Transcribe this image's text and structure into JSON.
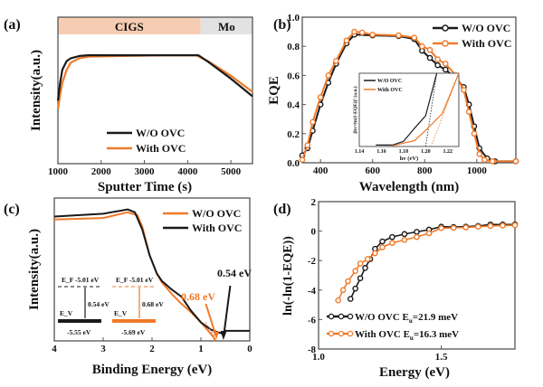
{
  "colors": {
    "black": "#1a1a1a",
    "orange": "#f07a2a",
    "cigs_band": "#f6cdb3",
    "mo_band": "#e2e2e2",
    "axis": "#555555"
  },
  "chart_data": [
    {
      "panel": "(a)",
      "type": "line",
      "xlabel": "Sputter Time (s)",
      "ylabel": "Intensity(a.u.)",
      "xlim": [
        1000,
        5500
      ],
      "ylim": [
        0,
        1
      ],
      "xticks": [
        1000,
        2000,
        3000,
        4000,
        5000
      ],
      "regions": [
        {
          "label": "CIGS",
          "from": 1000,
          "to": 4300
        },
        {
          "label": "Mo",
          "from": 4300,
          "to": 5500
        }
      ],
      "legend": "bottom-center",
      "series": [
        {
          "name": "W/O OVC",
          "color": "black",
          "x": [
            1000,
            1050,
            1100,
            1200,
            1300,
            1500,
            1700,
            2500,
            3500,
            4250,
            4500,
            5000,
            5500
          ],
          "y": [
            0.43,
            0.55,
            0.64,
            0.7,
            0.72,
            0.735,
            0.74,
            0.74,
            0.74,
            0.74,
            0.69,
            0.58,
            0.46
          ]
        },
        {
          "name": "With OVC",
          "color": "orange",
          "x": [
            1000,
            1050,
            1100,
            1200,
            1300,
            1500,
            1700,
            2500,
            3500,
            4200,
            4500,
            5000,
            5500
          ],
          "y": [
            0.37,
            0.47,
            0.55,
            0.64,
            0.69,
            0.72,
            0.73,
            0.735,
            0.74,
            0.74,
            0.695,
            0.6,
            0.49
          ]
        }
      ]
    },
    {
      "panel": "(b)",
      "type": "line",
      "xlabel": "Wavelength (nm)",
      "ylabel": "EQE",
      "xlim": [
        330,
        1150
      ],
      "ylim": [
        0,
        1.0
      ],
      "xticks": [
        400,
        600,
        800,
        1000
      ],
      "yticks": [
        "0.0",
        "0.2",
        "0.4",
        "0.6",
        "0.8",
        "1.0"
      ],
      "legend": "top-right",
      "series": [
        {
          "name": "W/O OVC",
          "color": "black",
          "x": [
            330,
            350,
            370,
            400,
            430,
            460,
            500,
            530,
            600,
            700,
            760,
            790,
            820,
            850,
            880,
            920,
            950,
            970,
            990,
            1010,
            1040,
            1070,
            1150
          ],
          "y": [
            0.05,
            0.1,
            0.22,
            0.4,
            0.55,
            0.68,
            0.82,
            0.88,
            0.875,
            0.87,
            0.85,
            0.77,
            0.72,
            0.67,
            0.64,
            0.58,
            0.52,
            0.4,
            0.25,
            0.1,
            0.03,
            0.01,
            0.01
          ]
        },
        {
          "name": "With OVC",
          "color": "orange",
          "x": [
            330,
            350,
            370,
            400,
            430,
            460,
            500,
            530,
            560,
            600,
            700,
            760,
            790,
            820,
            850,
            880,
            920,
            950,
            970,
            990,
            1010,
            1030,
            1060,
            1150
          ],
          "y": [
            0.02,
            0.12,
            0.28,
            0.45,
            0.6,
            0.7,
            0.84,
            0.9,
            0.895,
            0.88,
            0.875,
            0.86,
            0.8,
            0.775,
            0.71,
            0.68,
            0.6,
            0.5,
            0.35,
            0.2,
            0.06,
            0.02,
            0.01,
            0.01
          ]
        }
      ],
      "inset": {
        "xlabel": "hv (eV)",
        "ylabel": "[hv×ln(1-EQE)]² (a.u.)",
        "xlim": [
          1.14,
          1.23
        ],
        "xticks": [
          "1.14",
          "1.16",
          "1.18",
          "1.20",
          "1.22"
        ],
        "series": [
          {
            "name": "W/O OVC",
            "color": "black",
            "x": [
              1.155,
              1.17,
              1.18,
              1.19,
              1.2,
              1.21
            ],
            "y": [
              0.02,
              0.02,
              0.07,
              0.25,
              0.42,
              1.0
            ],
            "intercept": 1.2
          },
          {
            "name": "With OVC",
            "color": "orange",
            "x": [
              1.17,
              1.19,
              1.2,
              1.215,
              1.23
            ],
            "y": [
              0.01,
              0.08,
              0.22,
              0.45,
              1.0
            ],
            "intercept": 1.205
          }
        ]
      }
    },
    {
      "panel": "(c)",
      "type": "line",
      "xlabel": "Binding Energy (eV)",
      "ylabel": "Intensity(a.u.)",
      "xlim": [
        4,
        0
      ],
      "ylim": [
        0,
        1
      ],
      "xticks": [
        4,
        3,
        2,
        1,
        0
      ],
      "legend": "top-right",
      "series": [
        {
          "name": "W/O OVC",
          "color": "orange",
          "x": [
            4,
            3,
            2.5,
            2.3,
            2.2,
            2.05,
            1.9,
            1.8,
            1.6,
            1.4,
            1.2,
            1.0,
            0.85,
            0.75,
            0.7
          ],
          "y": [
            0.85,
            0.86,
            0.9,
            0.88,
            0.8,
            0.6,
            0.47,
            0.41,
            0.33,
            0.26,
            0.2,
            0.13,
            0.07,
            0.03,
            0.0
          ]
        },
        {
          "name": "With OVC",
          "color": "black",
          "x": [
            4,
            3,
            2.5,
            2.35,
            2.2,
            2.05,
            1.9,
            1.8,
            1.6,
            1.4,
            1.3,
            1.2,
            1.0,
            0.8,
            0.65,
            0.55,
            0.5,
            0.3,
            0
          ],
          "y": [
            0.87,
            0.89,
            0.92,
            0.9,
            0.78,
            0.6,
            0.47,
            0.42,
            0.36,
            0.31,
            0.26,
            0.21,
            0.13,
            0.08,
            0.06,
            0.05,
            0.07,
            0.07,
            0.07
          ]
        }
      ],
      "annotations": {
        "black_onset": "0.54 eV",
        "orange_onset": "0.68 eV",
        "band_black": {
          "ef": "E_F -5.01 eV",
          "gap": "0.54 eV",
          "ev": "E_V",
          "ev_value": "-5.55 eV"
        },
        "band_orange": {
          "ef": "E_F -5.01 eV",
          "gap": "0.68 eV",
          "ev": "E_V",
          "ev_value": "-5.69 eV"
        }
      }
    },
    {
      "panel": "(d)",
      "type": "scatter",
      "xlabel": "Energy (eV)",
      "ylabel": "ln(-ln(1-EQE))",
      "xlim": [
        1.0,
        1.8
      ],
      "ylim": [
        -8,
        2
      ],
      "xticks": [
        "1.0",
        "1.5"
      ],
      "yticks": [
        2,
        0,
        -2,
        -4,
        -6,
        -8
      ],
      "legend": "bottom-left",
      "series": [
        {
          "name": "W/O OVC E_u=21.9 meV",
          "color": "black",
          "x": [
            1.13,
            1.15,
            1.17,
            1.19,
            1.21,
            1.23,
            1.26,
            1.3,
            1.35,
            1.4,
            1.45,
            1.5,
            1.55,
            1.6,
            1.65,
            1.7,
            1.75,
            1.8
          ],
          "y": [
            -4.6,
            -3.9,
            -3.2,
            -2.5,
            -1.9,
            -1.2,
            -0.7,
            -0.4,
            -0.2,
            -0.05,
            0.1,
            0.3,
            0.28,
            0.3,
            0.35,
            0.45,
            0.45,
            0.45
          ]
        },
        {
          "name": "With OVC E_u=16.3 meV",
          "color": "orange",
          "x": [
            1.08,
            1.1,
            1.12,
            1.15,
            1.17,
            1.2,
            1.23,
            1.26,
            1.3,
            1.35,
            1.4,
            1.45,
            1.5,
            1.55,
            1.6,
            1.65,
            1.7,
            1.75,
            1.8
          ],
          "y": [
            -4.7,
            -4.0,
            -3.4,
            -2.7,
            -2.2,
            -1.9,
            -1.5,
            -1.1,
            -0.8,
            -0.6,
            -0.4,
            -0.15,
            0.2,
            0.22,
            0.25,
            0.3,
            0.35,
            0.38,
            0.4
          ]
        }
      ],
      "legend_labels": [
        {
          "pre": "W/O OVC E",
          "sub": "u",
          "post": "=21.9 meV"
        },
        {
          "pre": "With OVC E",
          "sub": "u",
          "post": "=16.3 meV"
        }
      ]
    }
  ]
}
